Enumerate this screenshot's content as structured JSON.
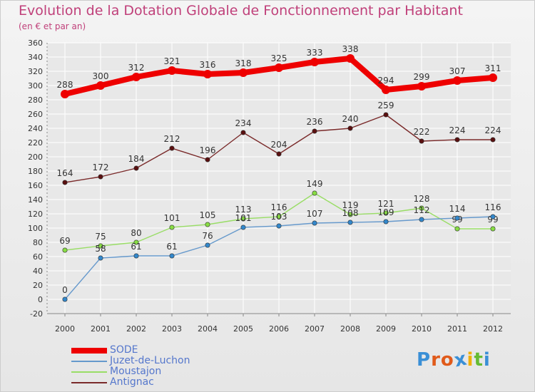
{
  "header": {
    "title": "Evolution de la Dotation Globale de Fonctionnement par Habitant",
    "subtitle": "(en € et par an)"
  },
  "colors": {
    "title": "#c0407a",
    "axis": "#888888",
    "grid": "#ffffff",
    "legend_text": "#5577cc"
  },
  "chart_data": {
    "type": "line",
    "title": "Evolution de la Dotation Globale de Fonctionnement par Habitant",
    "subtitle": "(en € et par an)",
    "xlabel": "",
    "ylabel": "",
    "x": [
      "2000",
      "2001",
      "2002",
      "2003",
      "2004",
      "2005",
      "2006",
      "2007",
      "2008",
      "2009",
      "2010",
      "2011",
      "2012"
    ],
    "ylim": [
      -20,
      360
    ],
    "yticks": [
      -20,
      0,
      20,
      40,
      60,
      80,
      100,
      120,
      140,
      160,
      180,
      200,
      220,
      240,
      260,
      280,
      300,
      320,
      340,
      360
    ],
    "grid": true,
    "series": [
      {
        "name": "SODE",
        "color": "#ee0000",
        "marker": "#ee0000",
        "heavy": true,
        "values": [
          288,
          300,
          312,
          321,
          316,
          318,
          325,
          333,
          338,
          294,
          299,
          307,
          311
        ]
      },
      {
        "name": "Antignac",
        "color": "#7a2a2a",
        "marker": "#5a1010",
        "heavy": false,
        "values": [
          164,
          172,
          184,
          212,
          196,
          234,
          204,
          236,
          240,
          259,
          222,
          224,
          224
        ]
      },
      {
        "name": "Moustajon",
        "color": "#99dd66",
        "marker": "#88dd44",
        "heavy": false,
        "values": [
          69,
          75,
          80,
          101,
          105,
          113,
          116,
          149,
          119,
          121,
          128,
          99,
          99
        ]
      },
      {
        "name": "Juzet-de-Luchon",
        "color": "#6699cc",
        "marker": "#3388cc",
        "heavy": false,
        "values": [
          0,
          58,
          61,
          61,
          76,
          101,
          103,
          107,
          108,
          109,
          112,
          114,
          116
        ]
      }
    ]
  },
  "legend": {
    "items": [
      {
        "label": "SODE",
        "color": "#ee0000",
        "heavy": true
      },
      {
        "label": "Juzet-de-Luchon",
        "color": "#6699cc",
        "heavy": false
      },
      {
        "label": "Moustajon",
        "color": "#99dd66",
        "heavy": false
      },
      {
        "label": "Antignac",
        "color": "#7a2a2a",
        "heavy": false
      }
    ]
  },
  "logo": {
    "letters": [
      {
        "ch": "P",
        "color": "#3a8fd6"
      },
      {
        "ch": "r",
        "color": "#e05a1a"
      },
      {
        "ch": "o",
        "color": "#e05a1a"
      },
      {
        "ch": "x",
        "color": "#3a8fd6"
      },
      {
        "ch": "i",
        "color": "#f0b000"
      },
      {
        "ch": "t",
        "color": "#66bb33"
      },
      {
        "ch": "i",
        "color": "#3a8fd6"
      }
    ]
  }
}
